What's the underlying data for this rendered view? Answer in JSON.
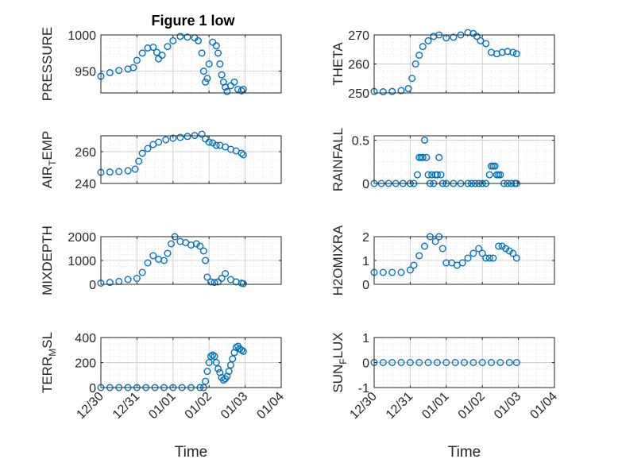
{
  "figure_title": "Figure 1 low",
  "marker_color": "#0072BD",
  "chart_data": [
    {
      "type": "scatter",
      "name": "PRESSURE",
      "title": "Figure 1 low",
      "xlabel": "",
      "ylabel": "PRESSURE",
      "xlim": [
        0,
        5
      ],
      "ylim": [
        920,
        1000
      ],
      "xticks": [
        0,
        1,
        2,
        3,
        4,
        5
      ],
      "xtick_labels": [
        "",
        "",
        "",
        "",
        "",
        ""
      ],
      "yticks": [
        950,
        1000
      ],
      "ytick_labels": [
        "950",
        "1000"
      ],
      "x": [
        0,
        0.25,
        0.5,
        0.75,
        0.9,
        1.0,
        1.15,
        1.3,
        1.45,
        1.55,
        1.6,
        1.7,
        1.85,
        2.0,
        2.2,
        2.4,
        2.6,
        2.7,
        2.8,
        2.85,
        2.9,
        2.95,
        3.0,
        3.1,
        3.2,
        3.25,
        3.3,
        3.35,
        3.4,
        3.45,
        3.5,
        3.6,
        3.7,
        3.8,
        3.9,
        3.95
      ],
      "y": [
        943,
        948,
        951,
        953,
        955,
        965,
        975,
        982,
        983,
        976,
        967,
        972,
        984,
        992,
        998,
        997,
        996,
        992,
        975,
        950,
        935,
        940,
        960,
        990,
        985,
        975,
        960,
        945,
        935,
        928,
        922,
        930,
        935,
        925,
        923,
        925
      ]
    },
    {
      "type": "scatter",
      "name": "THETA",
      "title": "",
      "xlabel": "",
      "ylabel": "THETA",
      "xlim": [
        0,
        5
      ],
      "ylim": [
        250,
        270
      ],
      "xticks": [
        0,
        1,
        2,
        3,
        4,
        5
      ],
      "xtick_labels": [
        "",
        "",
        "",
        "",
        "",
        ""
      ],
      "yticks": [
        250,
        260,
        270
      ],
      "ytick_labels": [
        "250",
        "260",
        "270"
      ],
      "x": [
        0,
        0.25,
        0.5,
        0.75,
        0.95,
        1.05,
        1.15,
        1.25,
        1.35,
        1.5,
        1.65,
        1.8,
        2.0,
        2.2,
        2.4,
        2.6,
        2.75,
        2.85,
        2.95,
        3.1,
        3.25,
        3.4,
        3.55,
        3.7,
        3.85,
        3.95
      ],
      "y": [
        250.5,
        250.4,
        250.5,
        250.8,
        251.5,
        255,
        260,
        263,
        266,
        268,
        269.5,
        270,
        269,
        269.2,
        270,
        270.8,
        270.5,
        269.5,
        268,
        267,
        264,
        263.5,
        264,
        264.3,
        264,
        263.5
      ]
    },
    {
      "type": "scatter",
      "name": "AIR_TEMP",
      "title": "",
      "xlabel": "",
      "ylabel": "AIR_TEMP",
      "xlim": [
        0,
        5
      ],
      "ylim": [
        240,
        270
      ],
      "xticks": [
        0,
        1,
        2,
        3,
        4,
        5
      ],
      "xtick_labels": [
        "",
        "",
        "",
        "",
        "",
        ""
      ],
      "yticks": [
        240,
        260
      ],
      "ytick_labels": [
        "240",
        "260"
      ],
      "x": [
        0,
        0.25,
        0.5,
        0.75,
        0.95,
        1.05,
        1.15,
        1.3,
        1.45,
        1.6,
        1.8,
        2.0,
        2.2,
        2.4,
        2.6,
        2.8,
        2.9,
        3.0,
        3.1,
        3.2,
        3.3,
        3.45,
        3.6,
        3.75,
        3.9,
        3.95
      ],
      "y": [
        247,
        247.2,
        247.5,
        248,
        249,
        254,
        259,
        262,
        264.5,
        266,
        267.5,
        268.5,
        269,
        269.6,
        270.2,
        271,
        268,
        266,
        265.5,
        264,
        264,
        263,
        261.5,
        260.5,
        259,
        258
      ]
    },
    {
      "type": "scatter",
      "name": "RAINFALL",
      "title": "",
      "xlabel": "",
      "ylabel": "RAINFALL",
      "xlim": [
        0,
        5
      ],
      "ylim": [
        0,
        0.55
      ],
      "xticks": [
        0,
        1,
        2,
        3,
        4,
        5
      ],
      "xtick_labels": [
        "",
        "",
        "",
        "",
        "",
        ""
      ],
      "yticks": [
        0,
        0.5
      ],
      "ytick_labels": [
        "0",
        "0.5"
      ],
      "x": [
        0,
        0.2,
        0.4,
        0.6,
        0.8,
        1.0,
        1.1,
        1.2,
        1.25,
        1.3,
        1.35,
        1.4,
        1.45,
        1.5,
        1.55,
        1.6,
        1.65,
        1.7,
        1.75,
        1.8,
        1.85,
        1.9,
        2.0,
        2.2,
        2.4,
        2.6,
        2.7,
        2.8,
        2.9,
        3.0,
        3.1,
        3.2,
        3.25,
        3.3,
        3.35,
        3.4,
        3.45,
        3.5,
        3.6,
        3.7,
        3.8,
        3.9,
        3.95
      ],
      "y": [
        0,
        0,
        0,
        0,
        0,
        0,
        0,
        0.1,
        0.3,
        0.3,
        0.3,
        0.5,
        0.3,
        0.1,
        0,
        0.1,
        0,
        0.1,
        0.1,
        0.3,
        0.1,
        0,
        0,
        0,
        0,
        0,
        0,
        0,
        0,
        0,
        0,
        0.1,
        0.2,
        0.2,
        0.2,
        0.1,
        0.1,
        0.1,
        0,
        0,
        0,
        0,
        0
      ]
    },
    {
      "type": "scatter",
      "name": "MIXDEPTH",
      "title": "",
      "xlabel": "",
      "ylabel": "MIXDEPTH",
      "xlim": [
        0,
        5
      ],
      "ylim": [
        0,
        2000
      ],
      "xticks": [
        0,
        1,
        2,
        3,
        4,
        5
      ],
      "xtick_labels": [
        "",
        "",
        "",
        "",
        "",
        ""
      ],
      "yticks": [
        0,
        1000,
        2000
      ],
      "ytick_labels": [
        "0",
        "1000",
        "2000"
      ],
      "x": [
        0,
        0.25,
        0.5,
        0.75,
        1.0,
        1.15,
        1.3,
        1.45,
        1.6,
        1.75,
        1.85,
        1.95,
        2.05,
        2.2,
        2.35,
        2.5,
        2.65,
        2.75,
        2.85,
        2.9,
        2.95,
        3.05,
        3.15,
        3.25,
        3.35,
        3.45,
        3.6,
        3.75,
        3.9,
        3.95
      ],
      "y": [
        50,
        80,
        120,
        200,
        250,
        500,
        900,
        1200,
        1050,
        1000,
        1300,
        1700,
        2000,
        1800,
        1750,
        1650,
        1700,
        1600,
        1400,
        1000,
        300,
        100,
        80,
        100,
        250,
        450,
        200,
        100,
        50,
        30
      ]
    },
    {
      "type": "scatter",
      "name": "H2OMIXRA",
      "title": "",
      "xlabel": "",
      "ylabel": "H2OMIXRA",
      "xlim": [
        0,
        5
      ],
      "ylim": [
        0,
        2
      ],
      "xticks": [
        0,
        1,
        2,
        3,
        4,
        5
      ],
      "xtick_labels": [
        "",
        "",
        "",
        "",
        "",
        ""
      ],
      "yticks": [
        0,
        1,
        2
      ],
      "ytick_labels": [
        "0",
        "1",
        "2"
      ],
      "x": [
        0,
        0.25,
        0.5,
        0.75,
        1.0,
        1.1,
        1.25,
        1.4,
        1.55,
        1.7,
        1.8,
        1.9,
        2.0,
        2.15,
        2.3,
        2.45,
        2.6,
        2.75,
        2.9,
        3.0,
        3.1,
        3.2,
        3.3,
        3.45,
        3.55,
        3.65,
        3.75,
        3.85,
        3.95
      ],
      "y": [
        0.5,
        0.5,
        0.5,
        0.5,
        0.6,
        0.8,
        1.2,
        1.6,
        2.0,
        1.8,
        2.0,
        1.5,
        0.9,
        0.9,
        0.8,
        0.9,
        1.1,
        1.3,
        1.5,
        1.3,
        1.1,
        1.1,
        1.1,
        1.6,
        1.6,
        1.5,
        1.4,
        1.3,
        1.1
      ]
    },
    {
      "type": "scatter",
      "name": "TERR_MSL",
      "title": "",
      "xlabel": "Time",
      "ylabel": "TERR_MSL",
      "xlim": [
        0,
        5
      ],
      "ylim": [
        0,
        400
      ],
      "xticks": [
        0,
        1,
        2,
        3,
        4,
        5
      ],
      "xtick_labels": [
        "12/30",
        "12/31",
        "01/01",
        "01/02",
        "01/03",
        "01/04"
      ],
      "yticks": [
        0,
        200,
        400
      ],
      "ytick_labels": [
        "0",
        "200",
        "400"
      ],
      "x": [
        0,
        0.25,
        0.5,
        0.75,
        1.0,
        1.25,
        1.5,
        1.75,
        2.0,
        2.25,
        2.5,
        2.75,
        2.85,
        2.9,
        2.95,
        3.0,
        3.05,
        3.1,
        3.15,
        3.2,
        3.25,
        3.3,
        3.35,
        3.4,
        3.45,
        3.5,
        3.55,
        3.6,
        3.65,
        3.7,
        3.75,
        3.8,
        3.85,
        3.9,
        3.95
      ],
      "y": [
        0,
        0,
        0,
        0,
        0,
        0,
        0,
        0,
        0,
        0,
        0,
        0,
        0,
        50,
        130,
        200,
        250,
        260,
        250,
        200,
        150,
        120,
        80,
        60,
        70,
        90,
        130,
        180,
        230,
        280,
        320,
        330,
        310,
        300,
        290
      ]
    },
    {
      "type": "scatter",
      "name": "SUN_FLUX",
      "title": "",
      "xlabel": "Time",
      "ylabel": "SUN_FLUX",
      "xlim": [
        0,
        5
      ],
      "ylim": [
        -1,
        1
      ],
      "xticks": [
        0,
        1,
        2,
        3,
        4,
        5
      ],
      "xtick_labels": [
        "12/30",
        "12/31",
        "01/01",
        "01/02",
        "01/03",
        "01/04"
      ],
      "yticks": [
        -1,
        0,
        1
      ],
      "ytick_labels": [
        "-1",
        "0",
        "1"
      ],
      "x": [
        0,
        0.25,
        0.5,
        0.75,
        1.0,
        1.25,
        1.5,
        1.75,
        2.0,
        2.25,
        2.5,
        2.75,
        3.0,
        3.25,
        3.5,
        3.75,
        3.95
      ],
      "y": [
        0,
        0,
        0,
        0,
        0,
        0,
        0,
        0,
        0,
        0,
        0,
        0,
        0,
        0,
        0,
        0,
        0
      ]
    }
  ]
}
